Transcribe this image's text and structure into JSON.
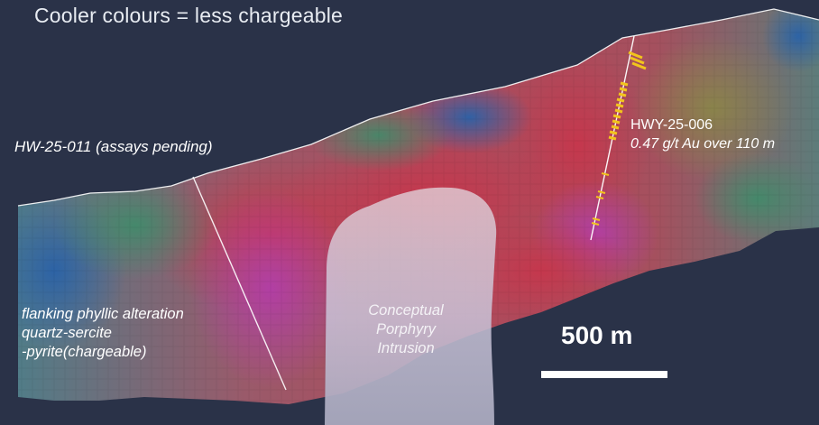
{
  "legend": {
    "cool_colours": "Cooler colours = less chargeable"
  },
  "drillholes": {
    "hw011": {
      "label": "HW-25-011 (assays pending)"
    },
    "hwy006": {
      "label": "HWY-25-006",
      "grade": "0.47 g/t Au over 110 m"
    }
  },
  "annotations": {
    "flanking": [
      "flanking phyllic alteration",
      "quartz-sercite",
      "-pyrite(chargeable)"
    ],
    "intrusion": [
      "Conceptual",
      "Porphyry",
      "Intrusion"
    ]
  },
  "scale_bar": {
    "label": "500 m"
  },
  "colors": {
    "background": "#2a3248",
    "high_chargeability": "#c2354a",
    "peak_chargeability": "#b53a9c",
    "moderate": "#7e8a4a",
    "low_chargeability": "#2f6aa8",
    "intrusion": "#c8c2d6",
    "assay_marker": "#f0c21e",
    "drill_trace": "#ffffff"
  }
}
